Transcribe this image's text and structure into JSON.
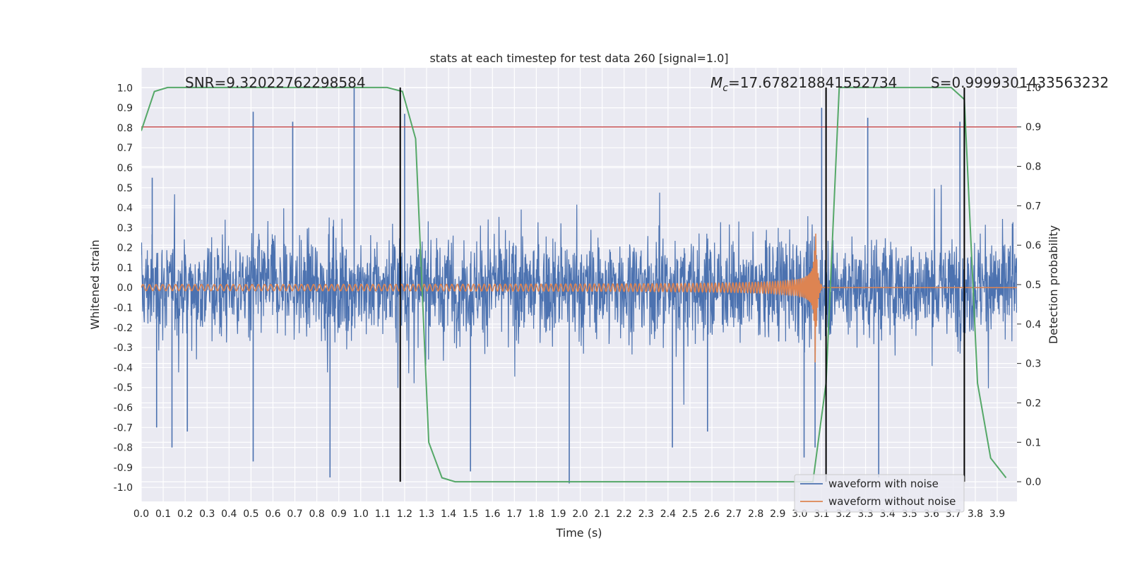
{
  "chart_data": {
    "type": "line",
    "title": "stats at each timestep for test data 260 [signal=1.0]",
    "xlabel": "Time (s)",
    "ylabel": "Whitened strain",
    "y2label": "Detection probability",
    "xlim": [
      0.0,
      3.99
    ],
    "ylim": [
      -1.07,
      1.1
    ],
    "y2lim": [
      -0.05,
      1.05
    ],
    "x_ticks": [
      "0.0",
      "0.1",
      "0.2",
      "0.3",
      "0.4",
      "0.5",
      "0.6",
      "0.7",
      "0.8",
      "0.9",
      "1.0",
      "1.1",
      "1.2",
      "1.3",
      "1.4",
      "1.5",
      "1.6",
      "1.7",
      "1.8",
      "1.9",
      "2.0",
      "2.1",
      "2.2",
      "2.3",
      "2.4",
      "2.5",
      "2.6",
      "2.7",
      "2.8",
      "2.9",
      "3.0",
      "3.1",
      "3.2",
      "3.3",
      "3.4",
      "3.5",
      "3.6",
      "3.7",
      "3.8",
      "3.9"
    ],
    "y_ticks": [
      "1.0",
      "0.9",
      "0.8",
      "0.7",
      "0.6",
      "0.5",
      "0.4",
      "0.3",
      "0.2",
      "0.1",
      "0.0",
      "-0.1",
      "-0.2",
      "-0.3",
      "-0.4",
      "-0.5",
      "-0.6",
      "-0.7",
      "-0.8",
      "-0.9",
      "-1.0"
    ],
    "y2_ticks": [
      "1.0",
      "0.9",
      "0.8",
      "0.7",
      "0.6",
      "0.5",
      "0.4",
      "0.3",
      "0.2",
      "0.1",
      "0.0"
    ],
    "grid": true,
    "legend_position": "lower-right",
    "annotations": {
      "snr": "SNR=9.32022762298584",
      "mc_symbol": "M",
      "mc_sub": "c",
      "mc_value": "=17.678218841552734",
      "s": "S=0.9999301433563232"
    },
    "threshold": 0.9,
    "vlines": [
      1.18,
      3.12,
      3.75
    ],
    "series": [
      {
        "name": "waveform with noise",
        "color": "#4c72b0",
        "kind": "noise",
        "envelope": 0.35,
        "spikes": [
          {
            "x": 0.05,
            "y": 0.55
          },
          {
            "x": 0.07,
            "y": -0.7
          },
          {
            "x": 0.14,
            "y": -0.8
          },
          {
            "x": 0.21,
            "y": -0.72
          },
          {
            "x": 0.51,
            "y": 0.88
          },
          {
            "x": 0.51,
            "y": -0.87
          },
          {
            "x": 0.69,
            "y": 0.83
          },
          {
            "x": 0.86,
            "y": -0.95
          },
          {
            "x": 0.97,
            "y": 1.0
          },
          {
            "x": 1.2,
            "y": 0.87
          },
          {
            "x": 1.5,
            "y": -0.92
          },
          {
            "x": 1.95,
            "y": -0.98
          },
          {
            "x": 2.42,
            "y": -0.8
          },
          {
            "x": 2.58,
            "y": -0.72
          },
          {
            "x": 3.02,
            "y": -0.85
          },
          {
            "x": 3.07,
            "y": -0.8
          },
          {
            "x": 3.1,
            "y": 0.9
          },
          {
            "x": 3.31,
            "y": 0.85
          },
          {
            "x": 3.36,
            "y": -0.95
          },
          {
            "x": 3.73,
            "y": 0.83
          }
        ]
      },
      {
        "name": "waveform without noise",
        "color": "#dd8452",
        "kind": "chirp",
        "merger_time": 3.07
      },
      {
        "name": "detection probability",
        "color": "#55a868",
        "axis": "y2",
        "x": [
          0.0,
          0.06,
          0.12,
          0.2,
          0.4,
          0.6,
          0.8,
          1.0,
          1.12,
          1.19,
          1.25,
          1.31,
          1.37,
          1.43,
          1.5,
          1.8,
          2.2,
          2.6,
          3.0,
          3.06,
          3.12,
          3.18,
          3.25,
          3.5,
          3.69,
          3.75,
          3.81,
          3.87,
          3.94
        ],
        "y": [
          0.89,
          0.99,
          1.0,
          1.0,
          1.0,
          1.0,
          1.0,
          1.0,
          1.0,
          0.99,
          0.87,
          0.1,
          0.01,
          0.0,
          0.0,
          0.0,
          0.0,
          0.0,
          0.0,
          0.0,
          0.25,
          1.0,
          1.0,
          1.0,
          1.0,
          0.97,
          0.25,
          0.06,
          0.01
        ]
      }
    ]
  }
}
